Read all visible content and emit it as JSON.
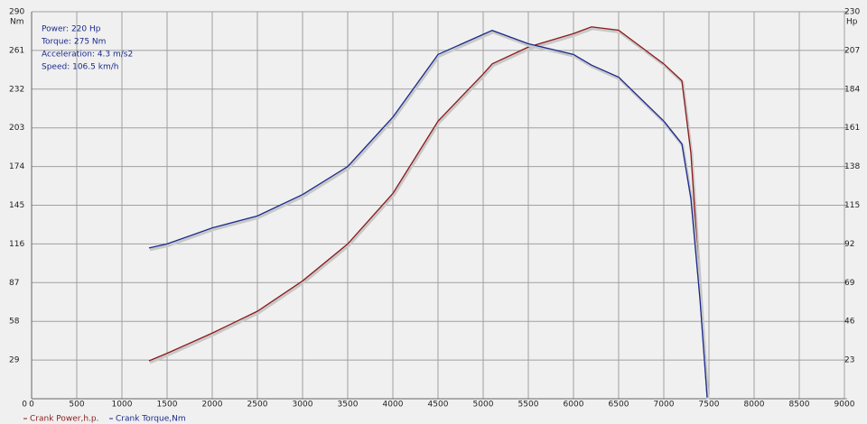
{
  "chart_data": {
    "type": "line",
    "annotations": [
      "Power: 220 Hp",
      "Torque: 275 Nm",
      "Acceleration: 4.3 m/s2",
      "Speed: 106.5 km/h"
    ],
    "y_label": "Nm",
    "y2_label": "Hp",
    "x": [
      1300,
      1500,
      2000,
      2500,
      3000,
      3500,
      4000,
      4500,
      5000,
      5100,
      5500,
      6000,
      6200,
      6500,
      7000,
      7200,
      7300,
      7400,
      7480
    ],
    "series": [
      {
        "name": "Crank Power,h.p.",
        "color": "#8b1a1a",
        "axis": "y2",
        "values": [
          22.5,
          27,
          39,
          52,
          70,
          92,
          122,
          165,
          193,
          199,
          209,
          217,
          221,
          219,
          199,
          189,
          146,
          65,
          1
        ]
      },
      {
        "name": "Crank Torque,Nm",
        "color": "#1a2a8c",
        "values": [
          113,
          116,
          128,
          137,
          153,
          174,
          211,
          258,
          273,
          276,
          266,
          258,
          250,
          241,
          208,
          191,
          150,
          75,
          1
        ]
      }
    ],
    "xlim": [
      0,
      9000
    ],
    "xticks": [
      0,
      500,
      1000,
      1500,
      2000,
      2500,
      3000,
      3500,
      4000,
      4500,
      5000,
      5500,
      6000,
      6500,
      7000,
      7500,
      8000,
      8500,
      9000
    ],
    "ylim": [
      0,
      290
    ],
    "yticks": [
      0,
      29,
      58,
      87,
      116,
      145,
      174,
      203,
      232,
      261,
      290
    ],
    "y2lim": [
      0,
      230
    ],
    "y2ticks": [
      0,
      23,
      46,
      69,
      92,
      115,
      138,
      161,
      184,
      207,
      230
    ],
    "grid": true
  }
}
